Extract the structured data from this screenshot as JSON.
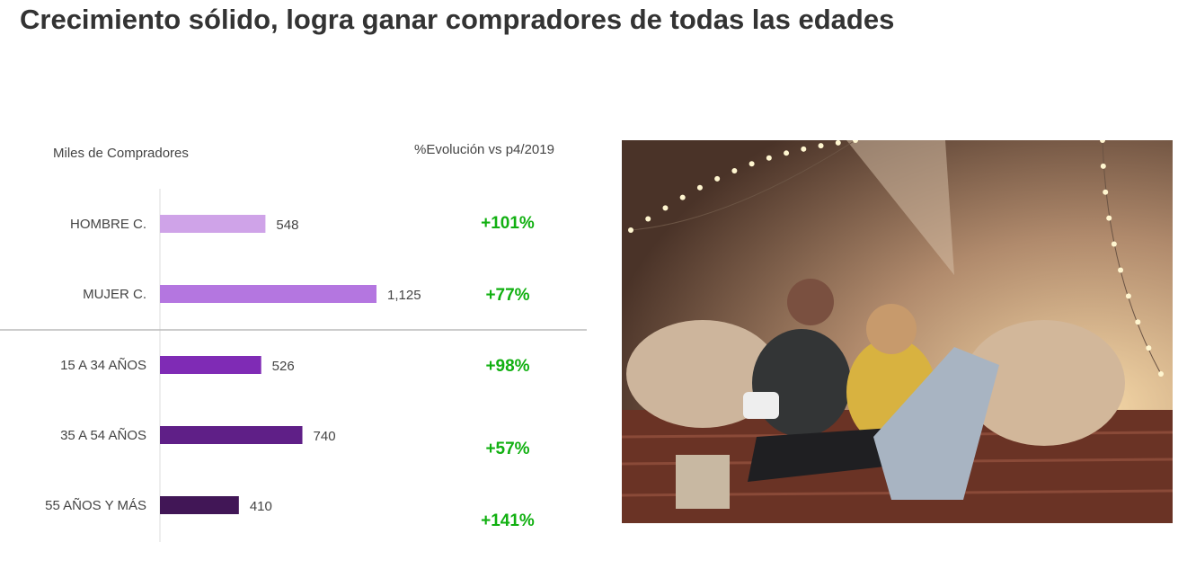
{
  "title": "Crecimiento sólido, logra ganar compradores de todas las edades",
  "chart_data": {
    "type": "bar",
    "orientation": "horizontal",
    "ylabel": "Miles de Compradores",
    "evolution_header": "%Evolución vs p4/2019",
    "categories": [
      "HOMBRE C.",
      "MUJER C.",
      "15 A 34 AÑOS",
      "35 A 54 AÑOS",
      "55 AÑOS Y MÁS"
    ],
    "values": [
      548,
      1125,
      526,
      740,
      410
    ],
    "value_labels": [
      "548",
      "1,125",
      "526",
      "740",
      "410"
    ],
    "evolution": [
      "+101%",
      "+77%",
      "+98%",
      "+57%",
      "+141%"
    ],
    "colors": [
      "#cfa3e8",
      "#b476e0",
      "#7f2bb5",
      "#5f1f87",
      "#411656"
    ],
    "evolution_color": "#11b011",
    "grid": false
  },
  "photo": {
    "description_icon": "photo-two-women-on-bed-with-phone"
  }
}
